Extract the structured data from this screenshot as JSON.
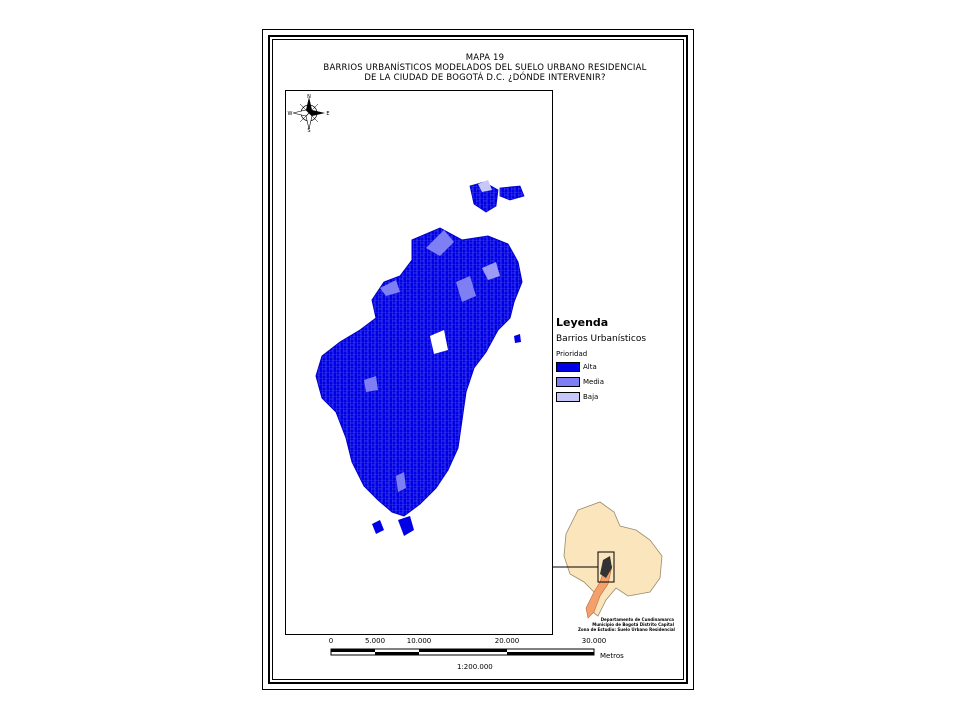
{
  "map": {
    "title_line1": "MAPA 19",
    "title_line2": "BARRIOS URBANÍSTICOS MODELADOS DEL SUELO URBANO RESIDENCIAL",
    "title_line3": "DE LA CIUDAD DE BOGOTÁ D.C. ¿DÓNDE INTERVENIR?",
    "north_arrow": {
      "icon": "compass-rose-icon",
      "labels": [
        "N",
        "W",
        "E",
        "S"
      ]
    },
    "legend": {
      "title": "Leyenda",
      "layer": "Barrios Urbanísticos",
      "field": "Prioridad",
      "classes": [
        {
          "label": "Alta",
          "color": "#0000e6"
        },
        {
          "label": "Media",
          "color": "#7f7ff5"
        },
        {
          "label": "Baja",
          "color": "#c8c8f8"
        }
      ]
    },
    "scale_bar": {
      "ticks": [
        "0",
        "5.000",
        "10.000",
        "20.000",
        "30.000"
      ],
      "unit": "Metros",
      "ratio": "1:200.000"
    },
    "inset": {
      "caption_line1": "Departamento de Cundinamarca",
      "caption_line2": "Municipio de Bogotá Distrito Capital",
      "caption_line3": "Zona de Estudio: Suelo Urbano Residencial",
      "region_color": "#fbe5bd",
      "district_color": "#f4a06c"
    },
    "colors": {
      "frame": "#000000",
      "background": "#ffffff"
    }
  }
}
